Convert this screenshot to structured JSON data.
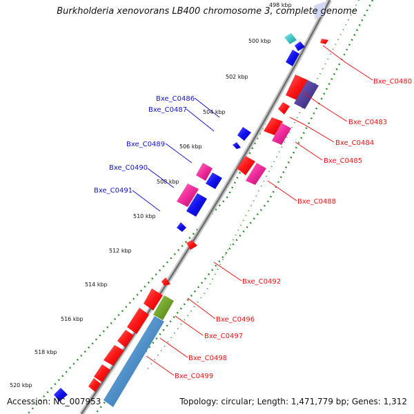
{
  "title": "Burkholderia xenovorans LB400 chromosome 3, complete genome",
  "footer": {
    "accession": "Accession: NC_007953",
    "summary": "Topology: circular; Length: 1,471,779 bp; Genes: 1,312"
  },
  "colors": {
    "backbone": "#8f8f8f",
    "tick_track": "#2a8a2a",
    "forward_gene": "#ff1515",
    "reverse_gene": "#1010ee",
    "magenta_gene": "#ee2a9a",
    "cyan_gene": "#22cccc",
    "olive_gene": "#6a9a22",
    "steel_gene": "#4f8fc8",
    "purple_gene": "#4a3a9a",
    "right_label": "#ee1111",
    "left_label": "#1111cc"
  },
  "scale_ticks": [
    "498 kbp",
    "500 kbp",
    "502 kbp",
    "504 kbp",
    "506 kbp",
    "508 kbp",
    "510 kbp",
    "512 kbp",
    "514 kbp",
    "516 kbp",
    "518 kbp",
    "520 kbp"
  ],
  "labels_right": [
    "Bxe_C0480",
    "Bxe_C0483",
    "Bxe_C0484",
    "Bxe_C0485",
    "Bxe_C0488",
    "Bxe_C0492",
    "Bxe_C0496",
    "Bxe_C0497",
    "Bxe_C0498",
    "Bxe_C0499"
  ],
  "labels_left": [
    "Bxe_C0486",
    "Bxe_C0487",
    "Bxe_C0489",
    "Bxe_C0490",
    "Bxe_C0491"
  ]
}
